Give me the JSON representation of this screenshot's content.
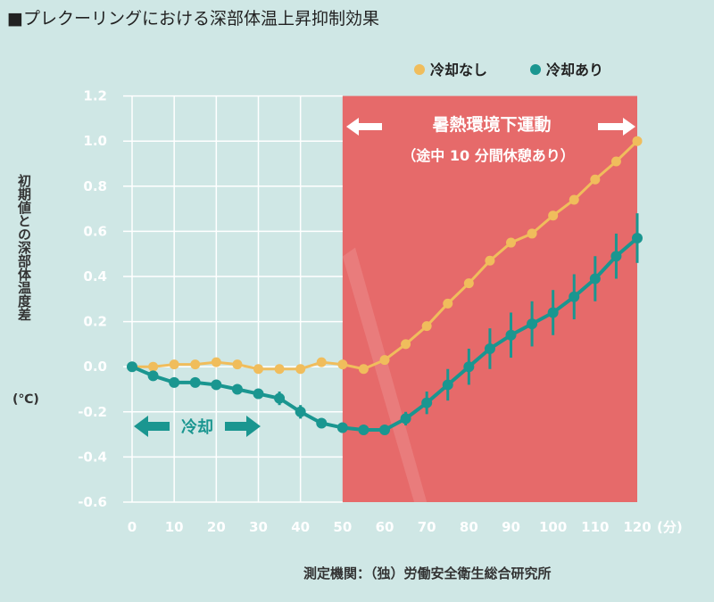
{
  "title": "■プレクーリングにおける深部体温上昇抑制効果",
  "source": "測定機関：（独）労働安全衛生総合研究所",
  "chart_data": {
    "type": "line",
    "title": "■プレクーリングにおける深部体温上昇抑制効果",
    "ylabel": "初期値との深部体温度差",
    "yunit": "(℃)",
    "xunit": "(分)",
    "xlim": [
      0,
      120
    ],
    "ylim": [
      -0.6,
      1.2
    ],
    "xticks": [
      0,
      10,
      20,
      30,
      40,
      50,
      60,
      70,
      80,
      90,
      100,
      110,
      120
    ],
    "yticks": [
      -0.6,
      -0.4,
      -0.2,
      0.0,
      0.2,
      0.4,
      0.6,
      0.8,
      1.0,
      1.2
    ],
    "grid": true,
    "legend": "top-right",
    "x": [
      0,
      5,
      10,
      15,
      20,
      25,
      30,
      35,
      40,
      45,
      50,
      55,
      60,
      65,
      70,
      75,
      80,
      85,
      90,
      95,
      100,
      105,
      110,
      115,
      120
    ],
    "series": [
      {
        "name": "冷却なし",
        "color": "#f0bd5c",
        "values": [
          0,
          0,
          0.01,
          0.01,
          0.02,
          0.01,
          -0.01,
          -0.01,
          -0.01,
          0.02,
          0.01,
          -0.01,
          0.03,
          0.1,
          0.18,
          0.28,
          0.37,
          0.47,
          0.55,
          0.59,
          0.67,
          0.74,
          0.83,
          0.91,
          1.0
        ]
      },
      {
        "name": "冷却あり",
        "color": "#1a9690",
        "values": [
          0,
          -0.04,
          -0.07,
          -0.07,
          -0.08,
          -0.1,
          -0.12,
          -0.14,
          -0.2,
          -0.25,
          -0.27,
          -0.28,
          -0.28,
          -0.23,
          -0.16,
          -0.08,
          0,
          0.08,
          0.14,
          0.19,
          0.24,
          0.31,
          0.39,
          0.49,
          0.57
        ],
        "error": [
          0.02,
          0.02,
          0.02,
          0.02,
          0.02,
          0.02,
          0.02,
          0.03,
          0.03,
          0.02,
          0.02,
          0.02,
          0.02,
          0.03,
          0.05,
          0.07,
          0.08,
          0.09,
          0.1,
          0.1,
          0.1,
          0.1,
          0.1,
          0.1,
          0.11
        ]
      }
    ],
    "annotations": {
      "exercise_span": [
        50,
        120
      ],
      "exercise_label": "暑熱環境下運動",
      "exercise_sub": "（途中 10 分間休憩あり）",
      "cooling_label": "冷却",
      "exercise_color": "#e66a6a"
    }
  }
}
